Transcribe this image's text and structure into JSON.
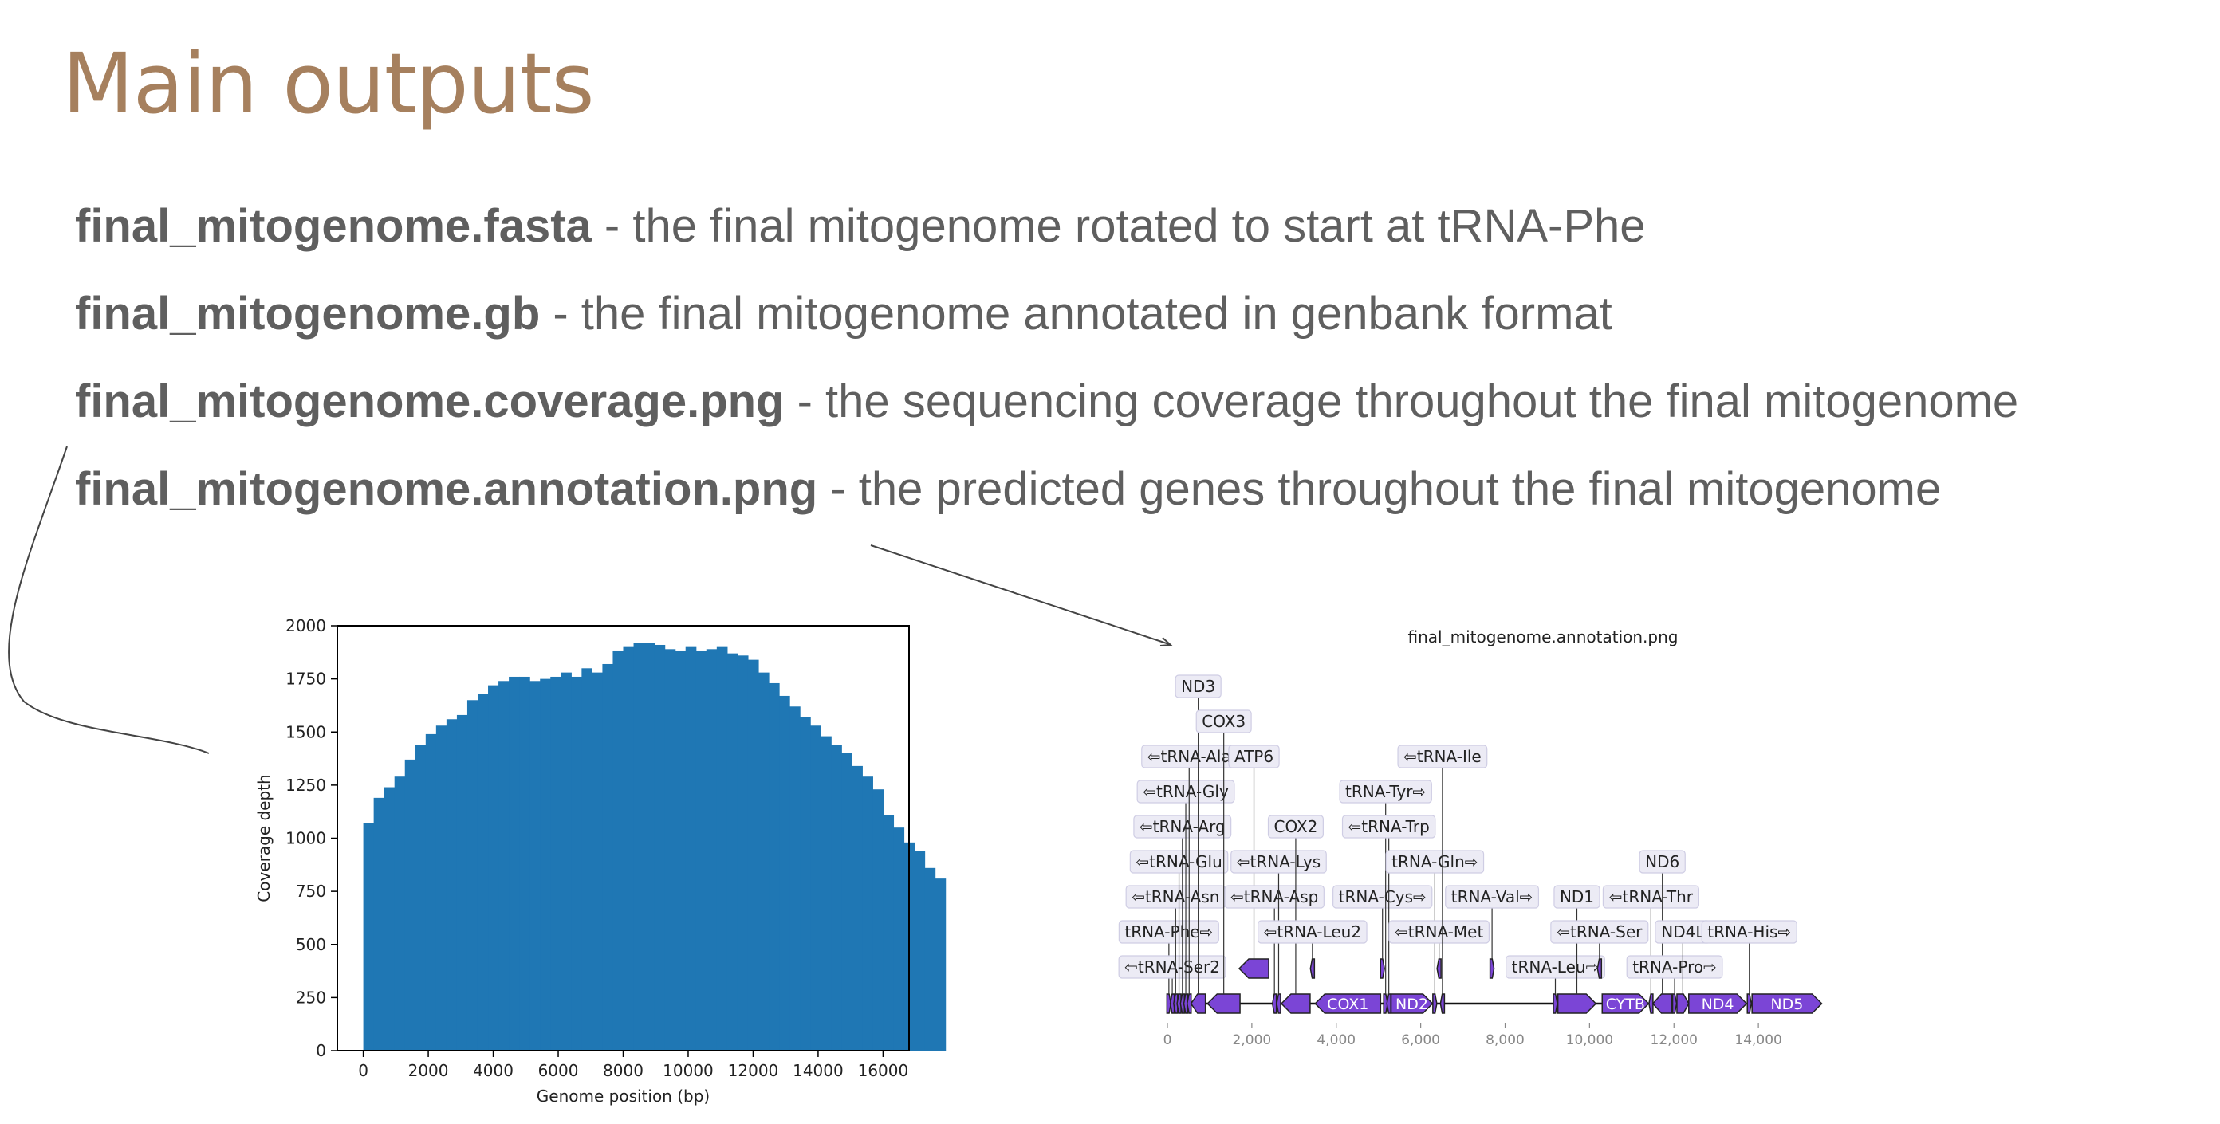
{
  "slide": {
    "title": "Main outputs",
    "bullets": [
      {
        "file": "final_mitogenome.fasta",
        "desc": " - the final mitogenome rotated to start at tRNA-Phe"
      },
      {
        "file": "final_mitogenome.gb",
        "desc": " - the final mitogenome annotated in genbank format"
      },
      {
        "file": "final_mitogenome.coverage.png",
        "desc": " - the sequencing coverage throughout the final mitogenome"
      },
      {
        "file": "final_mitogenome.annotation.png",
        "desc": " - the predicted genes throughout the final mitogenome"
      }
    ]
  },
  "chart_data": [
    {
      "type": "bar",
      "title": "",
      "xlabel": "Genome position (bp)",
      "ylabel": "Coverage depth",
      "xlim": [
        -800,
        16800
      ],
      "ylim": [
        0,
        2000
      ],
      "xticks": [
        0,
        2000,
        4000,
        6000,
        8000,
        10000,
        12000,
        14000,
        16000
      ],
      "yticks": [
        0,
        250,
        500,
        750,
        1000,
        1250,
        1500,
        1750,
        2000
      ],
      "bin_width": 320,
      "x_start": 0,
      "values": [
        1070,
        1190,
        1240,
        1290,
        1370,
        1440,
        1490,
        1530,
        1560,
        1580,
        1650,
        1680,
        1720,
        1740,
        1760,
        1760,
        1740,
        1750,
        1760,
        1780,
        1760,
        1800,
        1780,
        1820,
        1880,
        1900,
        1920,
        1920,
        1910,
        1890,
        1880,
        1900,
        1880,
        1890,
        1900,
        1870,
        1860,
        1840,
        1780,
        1730,
        1670,
        1620,
        1570,
        1530,
        1480,
        1440,
        1400,
        1340,
        1290,
        1230,
        1110,
        1050,
        980,
        940,
        860,
        810
      ],
      "color": "#1f77b4",
      "grid": false
    },
    {
      "type": "diagram",
      "title": "final_mitogenome.annotation.png",
      "xlim": [
        0,
        16000
      ],
      "xticks": [
        0,
        2000,
        4000,
        6000,
        8000,
        10000,
        12000,
        14000
      ],
      "xtick_labels": [
        "0",
        "2,000",
        "4,000",
        "6,000",
        "8,000",
        "10,000",
        "12,000",
        "14,000"
      ],
      "genome_length": 15500,
      "feature_color": "#7b45d6",
      "features": [
        {
          "name": "tRNA-Phe⇨",
          "start": 0,
          "end": 70,
          "strand": 1,
          "label_row": 1
        },
        {
          "name": "⇦tRNA-Ser2",
          "start": 80,
          "end": 150,
          "strand": -1,
          "label_row": 0
        },
        {
          "name": "⇦tRNA-Asn",
          "start": 160,
          "end": 230,
          "strand": -1,
          "label_row": 2
        },
        {
          "name": "⇦tRNA-Glu",
          "start": 240,
          "end": 310,
          "strand": -1,
          "label_row": 3
        },
        {
          "name": "⇦tRNA-Arg",
          "start": 320,
          "end": 390,
          "strand": -1,
          "label_row": 4
        },
        {
          "name": "⇦tRNA-Gly",
          "start": 400,
          "end": 470,
          "strand": -1,
          "label_row": 5
        },
        {
          "name": "⇦tRNA-Ala",
          "start": 480,
          "end": 550,
          "strand": -1,
          "label_row": 6
        },
        {
          "name": "ND3",
          "start": 560,
          "end": 900,
          "strand": -1,
          "label_row": 8
        },
        {
          "name": "COX3",
          "start": 950,
          "end": 1720,
          "strand": -1,
          "label_row": 7
        },
        {
          "name": "ATP6",
          "start": 1700,
          "end": 2400,
          "strand": -1,
          "label_row": 6,
          "track": 1
        },
        {
          "name": "⇦tRNA-Asp",
          "start": 2500,
          "end": 2570,
          "strand": -1,
          "label_row": 2
        },
        {
          "name": "⇦tRNA-Lys",
          "start": 2600,
          "end": 2670,
          "strand": -1,
          "label_row": 3
        },
        {
          "name": "COX2",
          "start": 2700,
          "end": 3380,
          "strand": -1,
          "label_row": 4
        },
        {
          "name": "⇦tRNA-Leu2",
          "start": 3400,
          "end": 3470,
          "strand": -1,
          "label_row": 1,
          "track": 1
        },
        {
          "name": "COX1",
          "start": 3500,
          "end": 5050,
          "strand": -1,
          "label_row": -1
        },
        {
          "name": "tRNA-Cys⇨",
          "start": 5060,
          "end": 5130,
          "strand": 1,
          "label_row": 2,
          "track": 1
        },
        {
          "name": "tRNA-Tyr⇨",
          "start": 5140,
          "end": 5200,
          "strand": 1,
          "label_row": 5
        },
        {
          "name": "⇦tRNA-Trp",
          "start": 5210,
          "end": 5280,
          "strand": -1,
          "label_row": 4
        },
        {
          "name": "ND2",
          "start": 5300,
          "end": 6280,
          "strand": 1,
          "label_row": -1
        },
        {
          "name": "tRNA-Gln⇨",
          "start": 6300,
          "end": 6370,
          "strand": 1,
          "label_row": 3
        },
        {
          "name": "⇦tRNA-Met",
          "start": 6400,
          "end": 6470,
          "strand": -1,
          "label_row": 1,
          "track": 1
        },
        {
          "name": "⇦tRNA-Ile",
          "start": 6480,
          "end": 6550,
          "strand": -1,
          "label_row": 6
        },
        {
          "name": "tRNA-Val⇨",
          "start": 7650,
          "end": 7730,
          "strand": 1,
          "label_row": 2,
          "track": 1
        },
        {
          "name": "tRNA-Leu⇨",
          "start": 9150,
          "end": 9230,
          "strand": 1,
          "label_row": 0
        },
        {
          "name": "ND1",
          "start": 9250,
          "end": 10150,
          "strand": 1,
          "label_row": 2
        },
        {
          "name": "⇦tRNA-Ser",
          "start": 10200,
          "end": 10270,
          "strand": -1,
          "label_row": 1,
          "track": 1
        },
        {
          "name": "CYTB",
          "start": 10300,
          "end": 11400,
          "strand": 1,
          "label_row": -1
        },
        {
          "name": "⇦tRNA-Thr",
          "start": 11420,
          "end": 11490,
          "strand": -1,
          "label_row": 2
        },
        {
          "name": "ND6",
          "start": 11500,
          "end": 11950,
          "strand": -1,
          "label_row": 3
        },
        {
          "name": "tRNA-Pro⇨",
          "start": 11980,
          "end": 12050,
          "strand": 1,
          "label_row": 0
        },
        {
          "name": "ND4L",
          "start": 12070,
          "end": 12350,
          "strand": 1,
          "label_row": 1
        },
        {
          "name": "ND4",
          "start": 12350,
          "end": 13720,
          "strand": 1,
          "label_row": -1
        },
        {
          "name": "tRNA-His⇨",
          "start": 13750,
          "end": 13820,
          "strand": 1,
          "label_row": 1
        },
        {
          "name": "ND5",
          "start": 13850,
          "end": 15500,
          "strand": 1,
          "label_row": -1
        }
      ]
    }
  ]
}
